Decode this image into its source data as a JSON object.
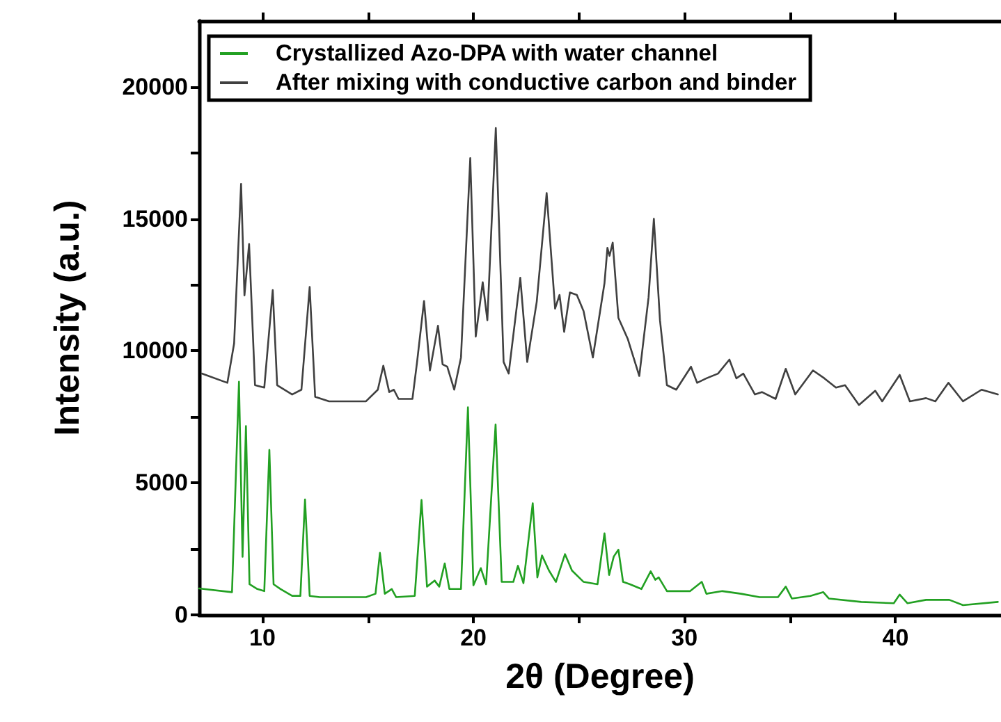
{
  "chart_data": {
    "type": "line",
    "xlabel": "2θ (Degree)",
    "ylabel": "Intensity (a.u.)",
    "xlim": [
      7,
      45
    ],
    "ylim": [
      0,
      22500
    ],
    "xticks": [
      10,
      {
        "value": 15,
        "label": null
      },
      20,
      {
        "value": 25,
        "label": null
      },
      30,
      {
        "value": 35,
        "label": null
      },
      40
    ],
    "yticks": [
      0,
      {
        "value": 2500,
        "label": null
      },
      5000,
      {
        "value": 7500,
        "label": null
      },
      10000,
      {
        "value": 12500,
        "label": null
      },
      15000,
      {
        "value": 17500,
        "label": null
      },
      20000
    ],
    "grid": false,
    "legend": "top",
    "marker": "none",
    "line_style": "solid",
    "series": [
      {
        "name": "Crystallized Azo-DPA with water channel",
        "color": "#22a022",
        "x": [
          7.0,
          8.56,
          8.89,
          9.06,
          9.22,
          9.39,
          9.76,
          10.09,
          10.33,
          10.53,
          10.86,
          11.41,
          11.8,
          12.02,
          12.24,
          12.72,
          14.91,
          15.36,
          15.57,
          15.8,
          16.13,
          16.34,
          17.22,
          17.54,
          17.8,
          18.16,
          18.38,
          18.64,
          18.86,
          19.41,
          19.74,
          20.0,
          20.35,
          20.6,
          21.05,
          21.34,
          21.89,
          22.11,
          22.37,
          22.81,
          23.03,
          23.25,
          23.58,
          23.91,
          24.34,
          24.67,
          25.22,
          25.88,
          26.21,
          26.43,
          26.65,
          26.87,
          27.09,
          27.42,
          27.96,
          28.4,
          28.62,
          28.78,
          29.17,
          30.27,
          30.82,
          31.04,
          31.8,
          32.68,
          33.56,
          34.43,
          34.8,
          35.09,
          35.97,
          36.58,
          36.84,
          38.38,
          39.92,
          40.2,
          40.57,
          41.45,
          42.55,
          43.2,
          44.85
        ],
        "values": [
          1000,
          860,
          8830,
          2200,
          7150,
          1160,
          980,
          900,
          6250,
          1160,
          980,
          720,
          720,
          4370,
          720,
          670,
          670,
          800,
          2350,
          800,
          980,
          670,
          720,
          4350,
          1070,
          1300,
          1070,
          1950,
          980,
          980,
          7860,
          1120,
          1770,
          1160,
          7210,
          1250,
          1250,
          1860,
          1200,
          4230,
          1420,
          2250,
          1680,
          1250,
          2300,
          1680,
          1250,
          1160,
          3090,
          1510,
          2210,
          2470,
          1250,
          1160,
          980,
          1650,
          1330,
          1420,
          900,
          900,
          1250,
          800,
          900,
          800,
          670,
          670,
          1070,
          620,
          720,
          860,
          620,
          490,
          440,
          770,
          440,
          570,
          570,
          370,
          490
        ]
      },
      {
        "name": "After mixing with conductive carbon and binder",
        "color": "#404040",
        "x": [
          7.13,
          8.34,
          8.66,
          8.99,
          9.15,
          9.37,
          9.65,
          10.09,
          10.49,
          10.7,
          11.41,
          11.85,
          12.24,
          12.5,
          13.16,
          14.91,
          15.47,
          15.73,
          16.01,
          16.23,
          16.45,
          17.11,
          17.33,
          17.66,
          17.94,
          18.32,
          18.54,
          18.76,
          19.09,
          19.41,
          19.85,
          20.11,
          20.44,
          20.66,
          21.06,
          21.43,
          21.67,
          22.22,
          22.55,
          23.0,
          23.47,
          23.87,
          24.08,
          24.3,
          24.57,
          24.9,
          25.22,
          25.66,
          26.21,
          26.35,
          26.45,
          26.6,
          26.87,
          27.31,
          27.86,
          28.3,
          28.55,
          28.84,
          29.17,
          29.61,
          30.31,
          30.6,
          31.04,
          31.59,
          32.13,
          32.46,
          32.79,
          33.34,
          33.67,
          34.32,
          34.8,
          35.25,
          36.09,
          36.63,
          37.18,
          37.61,
          38.27,
          39.04,
          39.37,
          40.2,
          40.68,
          41.45,
          41.89,
          42.51,
          43.2,
          44.08,
          44.85
        ],
        "values": [
          9140,
          8790,
          10280,
          16330,
          12100,
          14050,
          8700,
          8610,
          12300,
          8700,
          8350,
          8530,
          12420,
          8260,
          8090,
          8090,
          8530,
          9440,
          8440,
          8530,
          8180,
          8180,
          9580,
          11890,
          9260,
          10950,
          9490,
          9400,
          8530,
          9750,
          17300,
          10540,
          12600,
          11160,
          18440,
          9580,
          9140,
          12770,
          9580,
          11860,
          15980,
          11600,
          12120,
          10720,
          12210,
          12120,
          11510,
          9750,
          12560,
          13900,
          13600,
          14100,
          11250,
          10460,
          9050,
          12030,
          15000,
          11160,
          8700,
          8530,
          9400,
          8790,
          8960,
          9140,
          9670,
          8960,
          9140,
          8350,
          8440,
          8180,
          9320,
          8350,
          9260,
          8960,
          8610,
          8700,
          7950,
          8490,
          8090,
          9090,
          8090,
          8210,
          8090,
          8790,
          8090,
          8530,
          8350
        ]
      }
    ]
  }
}
